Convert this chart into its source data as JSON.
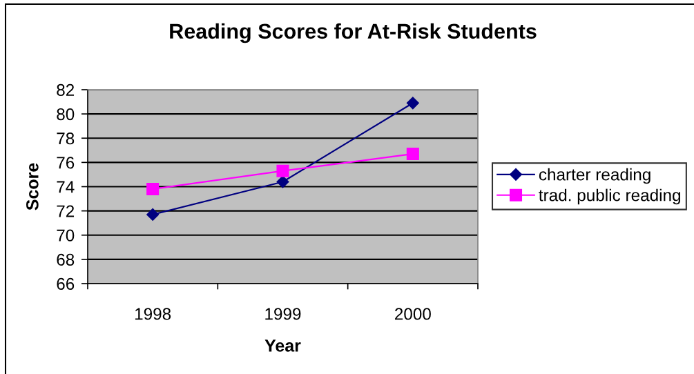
{
  "chart_data": {
    "type": "line",
    "title": "Reading Scores for At-Risk Students",
    "xlabel": "Year",
    "ylabel": "Score",
    "categories": [
      "1998",
      "1999",
      "2000"
    ],
    "series": [
      {
        "name": "charter reading",
        "color": "#000080",
        "marker": "diamond",
        "values": [
          71.7,
          74.4,
          80.9
        ]
      },
      {
        "name": "trad. public reading",
        "color": "#ff00ff",
        "marker": "square",
        "values": [
          73.8,
          75.3,
          76.7
        ]
      }
    ],
    "ylim": [
      66,
      82
    ],
    "yticks": [
      66,
      68,
      70,
      72,
      74,
      76,
      78,
      80,
      82
    ],
    "grid": "y",
    "legend": "right",
    "line_style": "solid"
  }
}
